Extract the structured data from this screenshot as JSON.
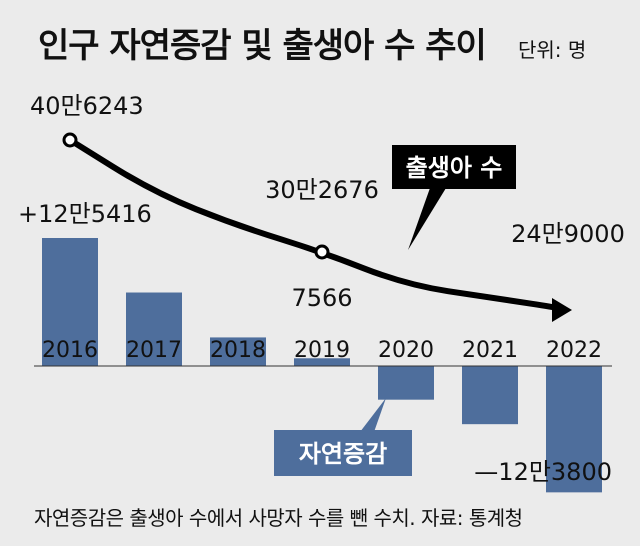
{
  "title": "인구 자연증감 및 출생아 수 추이",
  "unit": "단위: 명",
  "source_note": "자연증감은 출생아 수에서 사망자 수를 뺀 수치.  자료: 통계청",
  "colors": {
    "bar": "#4e6e9c",
    "line": "#000000",
    "background": "#ebebeb"
  },
  "chart_data": {
    "type": "bar+line",
    "categories": [
      "2016",
      "2017",
      "2018",
      "2019",
      "2020",
      "2021",
      "2022"
    ],
    "series": [
      {
        "name": "자연증감",
        "type": "bar",
        "values": [
          125416,
          72000,
          28000,
          7566,
          -33000,
          -57000,
          -123800
        ],
        "labels": [
          "+12만5416",
          "",
          "",
          "7566",
          "",
          "",
          "—12만3800"
        ]
      },
      {
        "name": "출생아 수",
        "type": "line",
        "values": [
          406243,
          357771,
          326822,
          302676,
          272337,
          260562,
          249000
        ],
        "labels": [
          "40만6243",
          "",
          "",
          "30만2676",
          "",
          "",
          "24만9000"
        ]
      }
    ]
  }
}
